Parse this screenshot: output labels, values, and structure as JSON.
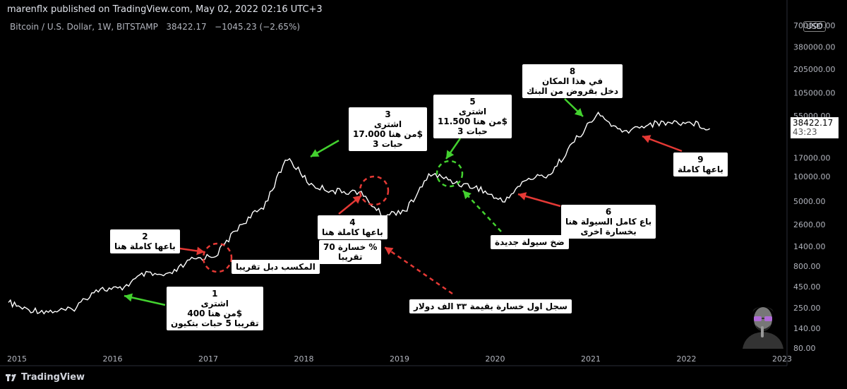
{
  "header": {
    "published": "marenflx published on TradingView.com, May 02, 2022 02:16 UTC+3",
    "symbol": "Bitcoin / U.S. Dollar, 1W, BITSTAMP",
    "last": "38422.17",
    "change": "−1045.23 (−2.65%)"
  },
  "axis": {
    "currency": "USD",
    "price_labels": [
      "700000.00",
      "380000.00",
      "205000.00",
      "105000.00",
      "55000.00",
      "17000.00",
      "10000.00",
      "5000.00",
      "2600.00",
      "1400.00",
      "800.00",
      "450.00",
      "250.00",
      "140.00",
      "80.00"
    ],
    "year_labels": [
      "2015",
      "2016",
      "2017",
      "2018",
      "2019",
      "2020",
      "2021",
      "2022",
      "2023"
    ],
    "current_price": "38422.17",
    "countdown": "43:23"
  },
  "annotations": {
    "a1": [
      "1",
      "اشترى",
      "من هنا 400$",
      "تقريبا 5 حبات بتكيون"
    ],
    "a2": [
      "2",
      "باعها كاملة هنا"
    ],
    "a2b": [
      "المكسب دبل تقريبا"
    ],
    "a3": [
      "3",
      "اشترى",
      "من هنا 17.000$",
      "3 حبات"
    ],
    "a4": [
      "4",
      "باعها كاملة هنا"
    ],
    "a4b": [
      "خسارة 70 %",
      "تقريبا"
    ],
    "a4c": [
      "سجل اول خسارة بقيمة ٣٣ الف دولار"
    ],
    "a5": [
      "5",
      "اشترى",
      "من هنا 11.500$",
      "3 حبات"
    ],
    "a5b": [
      "ضخ سيولة جديدة"
    ],
    "a6": [
      "6",
      "باع كامل السيولة هنا",
      "بخسارة اخرى"
    ],
    "a8": [
      "8",
      "في هذا المكان",
      "دخل بقروض من البنك"
    ],
    "a9": [
      "9",
      "باعها كاملة"
    ]
  },
  "footer": {
    "brand": "TradingView"
  },
  "chart_data": {
    "type": "line",
    "scale": "log",
    "ylim": [
      80,
      700000
    ],
    "xlim": [
      "2015-01",
      "2023-03"
    ],
    "x": [
      "2015-01",
      "2015-03",
      "2015-06",
      "2015-09",
      "2015-12",
      "2016-03",
      "2016-06",
      "2016-09",
      "2016-12",
      "2017-03",
      "2017-06",
      "2017-09",
      "2017-12",
      "2018-03",
      "2018-06",
      "2018-09",
      "2018-12",
      "2019-03",
      "2019-06",
      "2019-09",
      "2019-12",
      "2020-03",
      "2020-06",
      "2020-09",
      "2020-12",
      "2021-03",
      "2021-06",
      "2021-09",
      "2021-12",
      "2022-03",
      "2022-05"
    ],
    "values": [
      290,
      240,
      225,
      235,
      420,
      420,
      640,
      610,
      960,
      1100,
      2500,
      4300,
      17000,
      7800,
      6600,
      6500,
      3300,
      4000,
      11000,
      8500,
      7200,
      4900,
      9200,
      10700,
      27000,
      58000,
      34000,
      43000,
      46000,
      45000,
      38422
    ]
  }
}
